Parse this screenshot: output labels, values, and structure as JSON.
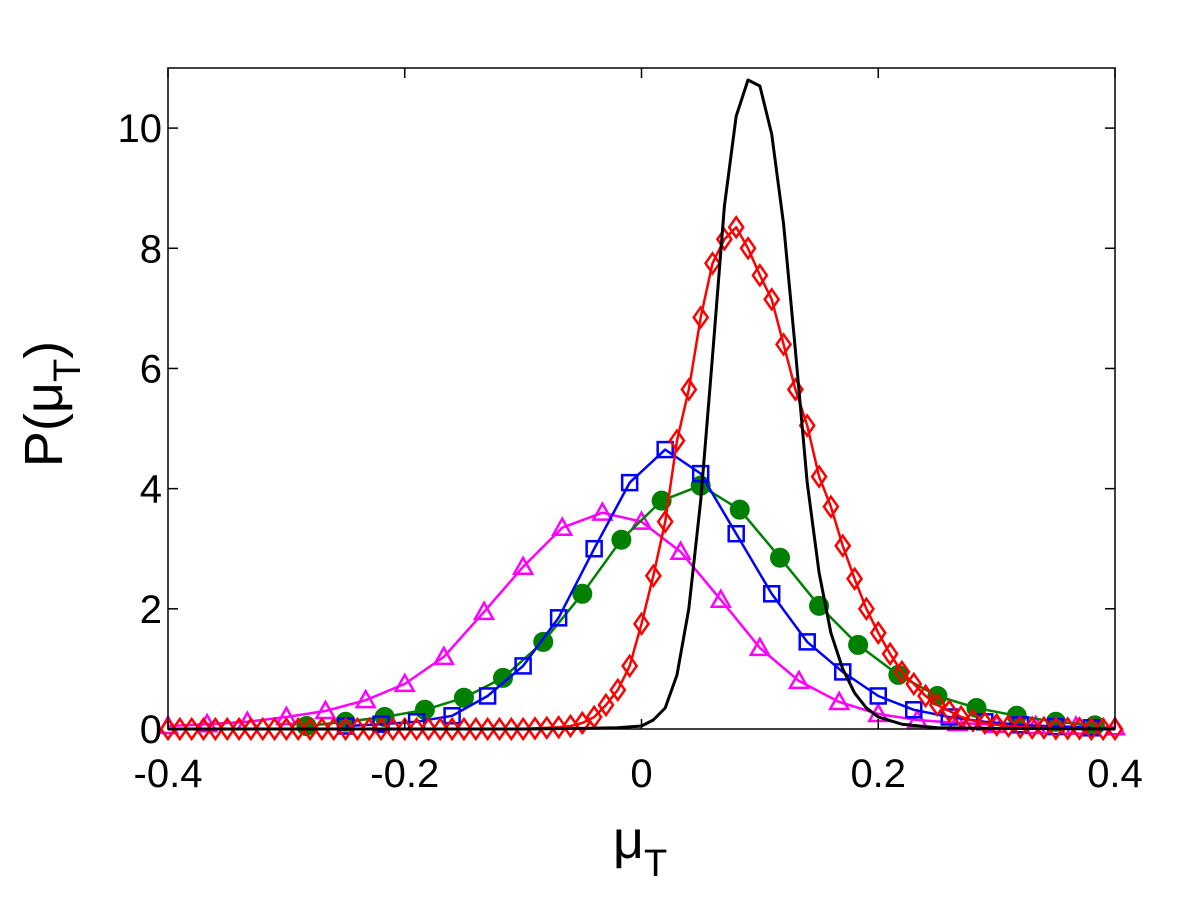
{
  "chart_data": {
    "type": "line",
    "title": "",
    "xlabel": "μ",
    "xlabel_subscript": "T",
    "ylabel": "P(μ",
    "ylabel_subscript": "T",
    "ylabel_suffix": ")",
    "xlim": [
      -0.4,
      0.4
    ],
    "ylim": [
      0,
      11
    ],
    "xticks": [
      -0.4,
      -0.2,
      0,
      0.2,
      0.4
    ],
    "xtick_labels": [
      "-0.4",
      "-0.2",
      "0",
      "0.2",
      "0.4"
    ],
    "yticks": [
      0,
      2,
      4,
      6,
      8,
      10
    ],
    "ytick_labels": [
      "0",
      "2",
      "4",
      "6",
      "8",
      "10"
    ],
    "grid": false,
    "legend": "none",
    "series": [
      {
        "color": "#ff00ff",
        "marker": "triangle",
        "x": [
          -0.4,
          -0.367,
          -0.333,
          -0.3,
          -0.267,
          -0.233,
          -0.2,
          -0.167,
          -0.133,
          -0.1,
          -0.067,
          -0.033,
          0,
          0.033,
          0.067,
          0.1,
          0.133,
          0.167,
          0.2,
          0.233,
          0.267,
          0.3,
          0.333,
          0.367,
          0.4
        ],
        "y": [
          0.05,
          0.08,
          0.12,
          0.2,
          0.3,
          0.48,
          0.75,
          1.2,
          1.95,
          2.7,
          3.35,
          3.6,
          3.45,
          2.95,
          2.15,
          1.35,
          0.8,
          0.45,
          0.25,
          0.15,
          0.1,
          0.07,
          0.05,
          0.04,
          0.03
        ]
      },
      {
        "color": "#008000",
        "marker": "circle",
        "x": [
          -0.283,
          -0.25,
          -0.217,
          -0.183,
          -0.15,
          -0.117,
          -0.083,
          -0.05,
          -0.017,
          0.017,
          0.05,
          0.083,
          0.117,
          0.15,
          0.183,
          0.217,
          0.25,
          0.283,
          0.317,
          0.35,
          0.383
        ],
        "y": [
          0.05,
          0.12,
          0.2,
          0.32,
          0.52,
          0.85,
          1.45,
          2.25,
          3.15,
          3.8,
          4.05,
          3.65,
          2.85,
          2.05,
          1.4,
          0.9,
          0.55,
          0.35,
          0.22,
          0.12,
          0.06
        ]
      },
      {
        "color": "#0000ff",
        "marker": "square",
        "x": [
          -0.25,
          -0.22,
          -0.19,
          -0.16,
          -0.13,
          -0.1,
          -0.07,
          -0.04,
          -0.01,
          0.02,
          0.05,
          0.08,
          0.11,
          0.14,
          0.17,
          0.2,
          0.23,
          0.26,
          0.29,
          0.32,
          0.35,
          0.38
        ],
        "y": [
          0.05,
          0.08,
          0.12,
          0.22,
          0.55,
          1.05,
          1.85,
          3.0,
          4.1,
          4.65,
          4.25,
          3.25,
          2.25,
          1.45,
          0.95,
          0.55,
          0.32,
          0.2,
          0.12,
          0.07,
          0.04,
          0.02
        ]
      },
      {
        "color": "#ff0000",
        "marker": "diamond",
        "x": [
          -0.4,
          -0.39,
          -0.38,
          -0.37,
          -0.36,
          -0.35,
          -0.34,
          -0.33,
          -0.32,
          -0.31,
          -0.3,
          -0.29,
          -0.28,
          -0.27,
          -0.26,
          -0.25,
          -0.24,
          -0.23,
          -0.22,
          -0.21,
          -0.2,
          -0.19,
          -0.18,
          -0.17,
          -0.16,
          -0.15,
          -0.14,
          -0.13,
          -0.12,
          -0.11,
          -0.1,
          -0.09,
          -0.08,
          -0.07,
          -0.06,
          -0.05,
          -0.04,
          -0.03,
          -0.02,
          -0.01,
          0,
          0.01,
          0.02,
          0.03,
          0.04,
          0.05,
          0.06,
          0.07,
          0.08,
          0.09,
          0.1,
          0.11,
          0.12,
          0.13,
          0.14,
          0.15,
          0.16,
          0.17,
          0.18,
          0.19,
          0.2,
          0.21,
          0.22,
          0.23,
          0.24,
          0.25,
          0.26,
          0.27,
          0.28,
          0.29,
          0.3,
          0.31,
          0.32,
          0.33,
          0.34,
          0.35,
          0.36,
          0.37,
          0.38,
          0.39,
          0.4
        ],
        "y": [
          0,
          0,
          0,
          0,
          0,
          0,
          0,
          0,
          0,
          0,
          0,
          0,
          0,
          0,
          0,
          0,
          0,
          0,
          0,
          0,
          0,
          0,
          0,
          0,
          0,
          0,
          0,
          0,
          0,
          0,
          0,
          0.01,
          0.02,
          0.03,
          0.05,
          0.1,
          0.2,
          0.4,
          0.65,
          1.05,
          1.75,
          2.55,
          3.45,
          4.8,
          5.65,
          6.85,
          7.75,
          8.15,
          8.35,
          8.0,
          7.55,
          7.15,
          6.4,
          5.65,
          5.05,
          4.2,
          3.7,
          3.05,
          2.5,
          2.0,
          1.6,
          1.25,
          0.95,
          0.75,
          0.55,
          0.4,
          0.3,
          0.2,
          0.14,
          0.1,
          0.07,
          0.05,
          0.03,
          0.02,
          0.02,
          0.01,
          0.01,
          0.01,
          0,
          0,
          0
        ]
      },
      {
        "color": "#000000",
        "marker": "none",
        "x": [
          -0.4,
          -0.1,
          -0.05,
          -0.02,
          0,
          0.01,
          0.02,
          0.03,
          0.04,
          0.05,
          0.06,
          0.07,
          0.08,
          0.09,
          0.1,
          0.11,
          0.12,
          0.13,
          0.14,
          0.15,
          0.16,
          0.17,
          0.18,
          0.19,
          0.2,
          0.22,
          0.25,
          0.3,
          0.4
        ],
        "y": [
          0,
          0,
          0.01,
          0.02,
          0.05,
          0.15,
          0.35,
          0.9,
          2.0,
          3.8,
          6.2,
          8.7,
          10.2,
          10.8,
          10.7,
          9.9,
          8.4,
          6.3,
          4.1,
          2.6,
          1.6,
          1.0,
          0.6,
          0.35,
          0.2,
          0.08,
          0.02,
          0.01,
          0
        ]
      }
    ]
  }
}
